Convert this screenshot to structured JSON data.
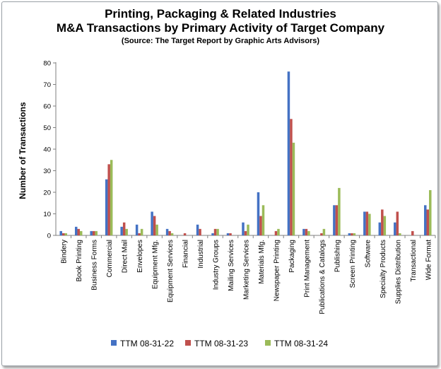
{
  "chart_data": {
    "type": "bar",
    "title": "Printing, Packaging & Related Industries",
    "subtitle": "M&A Transactions by Primary Activity of Target Company",
    "source": "(Source: The Target Report by Graphic Arts Advisors)",
    "ylabel": "Number of Transactions",
    "xlabel": "",
    "ylim": [
      0,
      80
    ],
    "yticks": [
      0,
      10,
      20,
      30,
      40,
      50,
      60,
      70,
      80
    ],
    "grid": false,
    "legend_position": "bottom",
    "categories": [
      "Bindery",
      "Book Printing",
      "Business Forms",
      "Commercial",
      "Direct Mail",
      "Envelopes",
      "Equipment Mfg.",
      "Equipment Services",
      "Financial",
      "Industrial",
      "Industry Groups",
      "Mailing Services",
      "Marketing Services",
      "Materials Mfg.",
      "Newspaper Printing",
      "Packaging",
      "Print Management",
      "Publications & Catalogs",
      "Publishing",
      "Screen Printing",
      "Software",
      "Specialty Products",
      "Supplies Distribution",
      "Transactional",
      "Wide Format"
    ],
    "series": [
      {
        "name": "TTM 08-31-22",
        "color": "#4472C4",
        "values": [
          2,
          4,
          2,
          26,
          4,
          5,
          11,
          3,
          0,
          5,
          1,
          1,
          6,
          20,
          0,
          76,
          3,
          0,
          14,
          1,
          11,
          6,
          6,
          0,
          14
        ]
      },
      {
        "name": "TTM 08-31-23",
        "color": "#C0504D",
        "values": [
          1,
          3,
          2,
          33,
          6,
          1,
          9,
          2,
          1,
          3,
          3,
          1,
          2,
          9,
          2,
          54,
          3,
          1,
          14,
          1,
          11,
          12,
          11,
          2,
          12
        ]
      },
      {
        "name": "TTM 08-31-24",
        "color": "#9BBB59",
        "values": [
          1,
          2,
          2,
          35,
          3,
          3,
          5,
          1,
          0,
          0,
          3,
          0,
          5,
          14,
          3,
          43,
          2,
          3,
          22,
          1,
          10,
          9,
          1,
          0,
          21
        ]
      }
    ]
  }
}
